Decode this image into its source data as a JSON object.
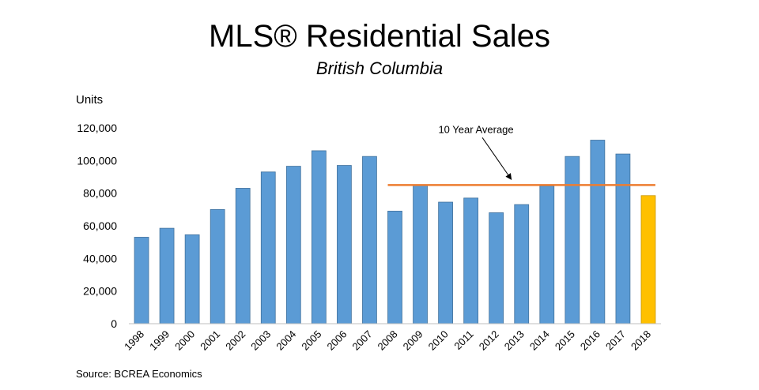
{
  "chart_data": {
    "type": "bar",
    "title": "MLS® Residential Sales",
    "subtitle": "British Columbia",
    "ylabel": "Units",
    "xlabel": "",
    "ylim": [
      0,
      120000
    ],
    "yticks": [
      0,
      20000,
      40000,
      60000,
      80000,
      100000,
      120000
    ],
    "ytick_labels": [
      "0",
      "20,000",
      "40,000",
      "60,000",
      "80,000",
      "100,000",
      "120,000"
    ],
    "grid": false,
    "categories": [
      "1998",
      "1999",
      "2000",
      "2001",
      "2002",
      "2003",
      "2004",
      "2005",
      "2006",
      "2007",
      "2008",
      "2009",
      "2010",
      "2011",
      "2012",
      "2013",
      "2014",
      "2015",
      "2016",
      "2017",
      "2018"
    ],
    "values": [
      53000,
      58500,
      54500,
      70000,
      83000,
      93000,
      96500,
      106000,
      97000,
      102500,
      69000,
      85000,
      74500,
      77000,
      68000,
      73000,
      84500,
      102500,
      112500,
      104000,
      78500
    ],
    "bar_color": "#5b9bd5",
    "highlight_color": "#ffc000",
    "highlight_category": "2018",
    "reference_line": {
      "label": "10 Year Average",
      "value": 85000,
      "start_category": "2008",
      "end_category": "2018",
      "color": "#ed7d31"
    },
    "source": "Source: BCREA Economics"
  }
}
